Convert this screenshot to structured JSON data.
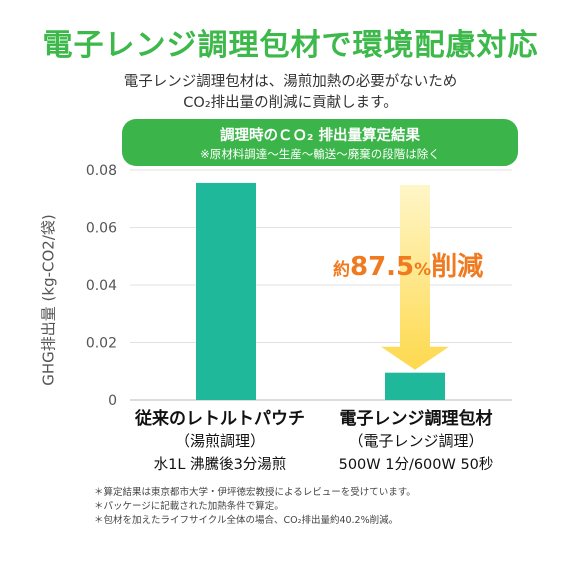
{
  "colors": {
    "title_green": "#3db84a",
    "banner_green": "#3bb54a",
    "bar_teal": "#1fb89a",
    "arrow_yellow": "#fde06b",
    "reduction_orange": "#f07a1f"
  },
  "header": {
    "title": "電子レンジ調理包材で環境配慮対応",
    "subtitle_line1": "電子レンジ調理包材は、湯煎加熱の必要がないため",
    "subtitle_line2": "CO₂排出量の削減に貢献します。"
  },
  "banner": {
    "title": "調理時のＣＯ₂ 排出量算定結果",
    "note": "※原材料調達〜生産〜輸送〜廃棄の段階は除く"
  },
  "chart_data": {
    "type": "bar",
    "ylabel": "GHG排出量 (kg-CO2/袋)",
    "ylim": [
      0,
      0.08
    ],
    "yticks": [
      "0",
      "0.02",
      "0.04",
      "0.06",
      "0.08"
    ],
    "categories": [
      "従来のレトルトパウチ",
      "電子レンジ調理包材"
    ],
    "values": [
      0.0755,
      0.0095
    ],
    "category_details": [
      {
        "line2": "（湯煎調理）",
        "line3": "水1L 沸騰後3分湯煎"
      },
      {
        "line2": "（電子レンジ調理）",
        "line3": "500W 1分/600W 50秒"
      }
    ],
    "annotation": {
      "prefix": "約",
      "value": "87.5",
      "unit": "%",
      "suffix": "削減"
    }
  },
  "footnotes": [
    "＊算定結果は東京都市大学・伊坪徳宏教授によるレビューを受けています。",
    "＊パッケージに記載された加熱条件で算定。",
    "＊包材を加えたライフサイクル全体の場合、CO₂排出量約40.2%削減。"
  ]
}
